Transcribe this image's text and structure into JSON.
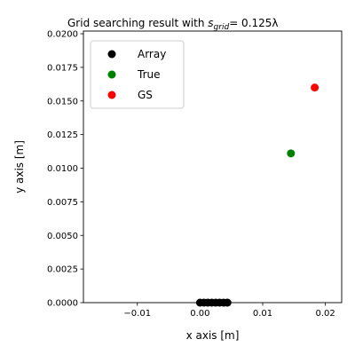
{
  "chart_data": {
    "type": "scatter",
    "title": {
      "prefix": "Grid searching result with ",
      "symbol": "s",
      "subscript": "grid",
      "suffix": "= 0.125λ"
    },
    "xlabel": "x axis [m]",
    "ylabel": "y axis [m]",
    "xlim": [
      -0.0186,
      0.0226
    ],
    "ylim": [
      0.0,
      0.0202
    ],
    "xticks": [
      -0.01,
      0.0,
      0.01,
      0.02
    ],
    "xtick_labels": [
      "−0.01",
      "0.00",
      "0.01",
      "0.02"
    ],
    "yticks": [
      0.0,
      0.0025,
      0.005,
      0.0075,
      0.01,
      0.0125,
      0.015,
      0.0175,
      0.02
    ],
    "ytick_labels": [
      "0.0000",
      "0.0025",
      "0.0050",
      "0.0075",
      "0.0100",
      "0.0125",
      "0.0150",
      "0.0175",
      "0.0200"
    ],
    "grid": false,
    "legend_position": "top-left",
    "series": [
      {
        "name": "Array",
        "color": "#000000",
        "points": [
          [
            0.0,
            0.0
          ],
          [
            0.000625,
            0.0
          ],
          [
            0.00125,
            0.0
          ],
          [
            0.001875,
            0.0
          ],
          [
            0.0025,
            0.0
          ],
          [
            0.003125,
            0.0
          ],
          [
            0.00375,
            0.0
          ],
          [
            0.004375,
            0.0
          ]
        ]
      },
      {
        "name": "True",
        "color": "#008000",
        "points": [
          [
            0.0145,
            0.0111
          ]
        ]
      },
      {
        "name": "GS",
        "color": "#ff0000",
        "points": [
          [
            0.0183,
            0.016
          ]
        ]
      }
    ]
  }
}
